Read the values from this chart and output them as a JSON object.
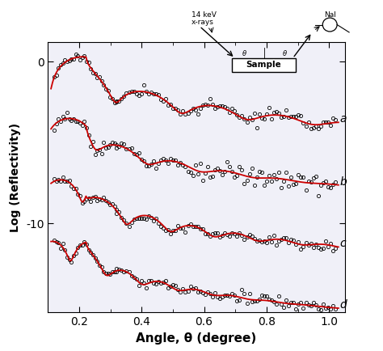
{
  "xlabel": "Angle, θ (degree)",
  "ylabel": "Log (Reflectivity)",
  "xlim": [
    0.1,
    1.05
  ],
  "ylim": [
    -15.5,
    1.2
  ],
  "yticks": [
    0,
    -10
  ],
  "xticks": [
    0.2,
    0.4,
    0.6,
    0.8,
    1.0
  ],
  "curve_labels": [
    "a",
    "b",
    "c",
    "d"
  ],
  "offsets": [
    0.0,
    -3.8,
    -7.6,
    -11.4
  ],
  "fit_color": "#cc0000",
  "data_color": "#000000",
  "background_color": "#f0f0f8"
}
